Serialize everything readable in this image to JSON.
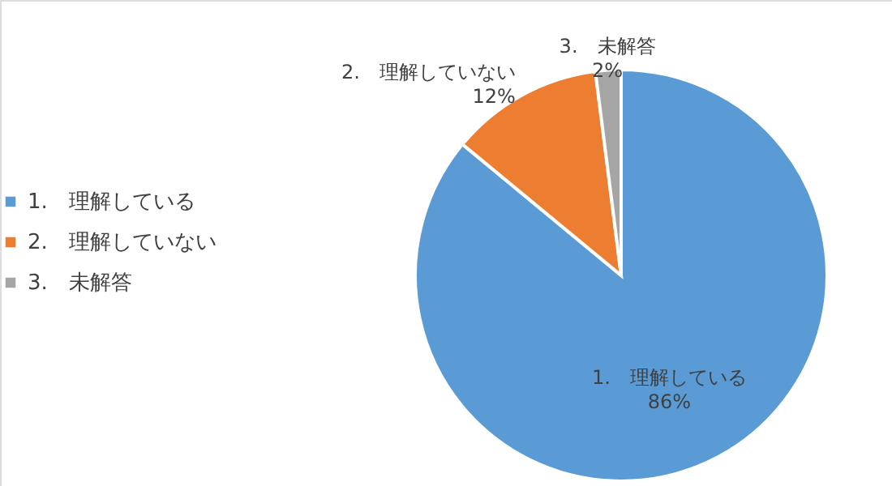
{
  "chart_data": {
    "type": "pie",
    "categories": [
      "1.　理解している",
      "2.　理解していない",
      "3.　未解答"
    ],
    "values": [
      86,
      12,
      2
    ],
    "colors": [
      "#5b9bd5",
      "#ed7d31",
      "#a5a5a5"
    ],
    "value_labels": [
      "86%",
      "12%",
      "2%"
    ],
    "legend": "left"
  }
}
